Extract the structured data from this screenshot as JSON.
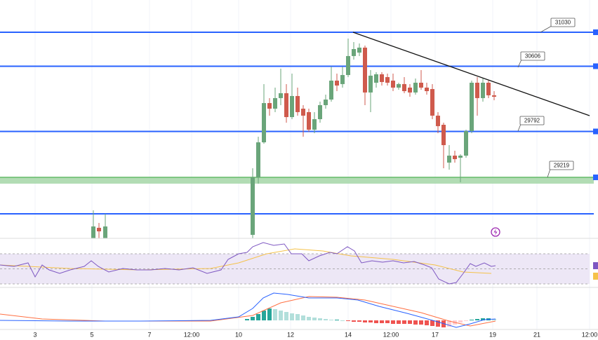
{
  "chart_data": {
    "type": "candlestick",
    "xlim": [
      0,
      106.5
    ],
    "xticks": [
      {
        "value": 6.25,
        "label": "3"
      },
      {
        "value": 16.375,
        "label": "5"
      },
      {
        "value": 26.625,
        "label": "7"
      },
      {
        "value": 34.125,
        "label": "12:00"
      },
      {
        "value": 42.5,
        "label": "10"
      },
      {
        "value": 51.75,
        "label": "12"
      },
      {
        "value": 62,
        "label": "14"
      },
      {
        "value": 69.625,
        "label": "12:00"
      },
      {
        "value": 77.5,
        "label": "17"
      },
      {
        "value": 87.75,
        "label": "19"
      },
      {
        "value": 95.625,
        "label": "21"
      },
      {
        "value": 105,
        "label": "12:00"
      }
    ],
    "ylim": [
      28457.5,
      31432.5
    ],
    "up_color": "#6aa57a",
    "down_color": "#cf5a4c",
    "level_color": "#2962ff",
    "levels": [
      31030,
      30606,
      29792
    ],
    "support_zone": 29219,
    "support_zone_color": "#a5d6a7",
    "lower_level": 28764,
    "trendline": {
      "x": [
        62.875,
        105
      ],
      "values": [
        31030,
        29989
      ],
      "color": "#111111"
    },
    "candles": {
      "x": [
        16.625,
        17.625,
        18.75,
        45,
        46,
        47,
        48,
        49,
        50,
        51,
        52,
        53,
        54,
        55,
        56,
        57,
        58,
        59,
        60,
        61,
        62,
        63,
        64,
        65,
        66,
        67,
        68,
        69,
        70,
        71,
        72,
        73,
        74,
        75,
        76,
        77,
        78,
        79,
        80,
        81,
        82,
        83,
        84,
        85,
        86,
        87,
        88
      ],
      "open": [
        28458,
        28589,
        28458,
        28501,
        29219,
        29656,
        30146,
        30076,
        30208,
        30269,
        29971,
        30234,
        30076,
        30033,
        29814,
        29945,
        30120,
        30190,
        30426,
        30383,
        30496,
        30733,
        30776,
        30838,
        30278,
        30400,
        30505,
        30470,
        30426,
        30339,
        30383,
        30339,
        30278,
        30400,
        30339,
        30321,
        29989,
        29875,
        29403,
        29490,
        29464,
        29490,
        29796,
        30400,
        30208,
        30400,
        30243
      ],
      "high": [
        28808,
        28650,
        28764,
        29333,
        29726,
        30383,
        30208,
        30339,
        30576,
        30383,
        30514,
        30339,
        30120,
        30076,
        30033,
        30164,
        30251,
        30601,
        30514,
        30601,
        30951,
        30908,
        30890,
        30864,
        30558,
        30531,
        30531,
        30514,
        30514,
        30400,
        30470,
        30383,
        30453,
        30558,
        30400,
        30383,
        30033,
        29901,
        29621,
        29551,
        29508,
        29814,
        30426,
        30470,
        30453,
        30426,
        30295
      ],
      "low": [
        28458,
        28458,
        28458,
        28458,
        29140,
        29639,
        29989,
        30033,
        30120,
        29901,
        29945,
        29989,
        29726,
        29788,
        29770,
        29901,
        30076,
        30164,
        30295,
        30339,
        30470,
        30689,
        30733,
        30120,
        30033,
        30339,
        30365,
        30365,
        30295,
        30313,
        30269,
        30225,
        30251,
        30313,
        30251,
        29945,
        29770,
        29333,
        29315,
        29403,
        29158,
        29464,
        29770,
        29989,
        30164,
        30208,
        30181
      ],
      "close": [
        28606,
        28545,
        28606,
        29219,
        29656,
        30146,
        30076,
        30208,
        30269,
        29971,
        30234,
        30033,
        29989,
        29814,
        29945,
        30120,
        30190,
        30426,
        30365,
        30496,
        30733,
        30820,
        30838,
        30278,
        30488,
        30505,
        30409,
        30400,
        30339,
        30383,
        30295,
        30278,
        30400,
        30339,
        30295,
        29989,
        29858,
        29621,
        29490,
        29446,
        29490,
        29796,
        30400,
        30208,
        30400,
        30243,
        30225
      ]
    },
    "rsi": {
      "ylim": [
        25.35,
        90.47
      ],
      "levels": [
        70,
        50,
        30
      ],
      "band_color": "#ede7f6",
      "x": [
        0,
        2.5,
        5,
        6.25,
        7.5,
        8.75,
        10.625,
        12.5,
        15,
        16.25,
        17.5,
        19.375,
        21.875,
        24.375,
        26.875,
        29.375,
        31.875,
        34.375,
        36.875,
        39.375,
        40.625,
        42.5,
        44,
        45,
        46.875,
        48.75,
        50.625,
        51.875,
        53.75,
        55,
        56.875,
        58.75,
        60,
        61.875,
        63.125,
        64.375,
        66.25,
        68.125,
        70,
        71.875,
        73.75,
        75.625,
        76.875,
        78.125,
        80,
        81.25,
        82.5,
        83.75,
        84.75,
        86.25,
        87.5,
        88.25
      ],
      "values": [
        55.1,
        53.3,
        57.9,
        39.3,
        55.1,
        48.6,
        44.0,
        48.6,
        53.3,
        60.7,
        53.3,
        45.8,
        50.5,
        48.6,
        48.6,
        50.5,
        48.6,
        51.4,
        44.0,
        48.6,
        62.6,
        70.0,
        71.9,
        79.3,
        84.9,
        81.2,
        83.0,
        70.0,
        70.0,
        60.7,
        67.2,
        71.9,
        70.0,
        79.3,
        73.7,
        57.9,
        60.7,
        58.8,
        60.7,
        57.9,
        59.8,
        55.1,
        51.4,
        36.5,
        30.0,
        31.9,
        44.0,
        57.0,
        53.3,
        57.9,
        53.3,
        54.2
      ],
      "color": "#7e57c2",
      "ma_x": [
        0,
        12.5,
        25,
        37.5,
        42.5,
        47.5,
        52.5,
        57.5,
        62.5,
        70,
        77.5,
        82.5,
        87.5
      ],
      "ma_values": [
        55.1,
        50.5,
        48.6,
        50.5,
        57.9,
        70.0,
        76.5,
        73.7,
        67.2,
        62.6,
        55.1,
        45.8,
        44.0
      ],
      "ma_color": "#f5c24a"
    },
    "macd": {
      "ylim": [
        -13,
        47
      ],
      "x": [
        0,
        12.5,
        25,
        37.5,
        42.5,
        45,
        46.875,
        48.75,
        51.25,
        55,
        60,
        63.75,
        67.5,
        72.5,
        77.5,
        81.25,
        83.75,
        86.25,
        88.25
      ],
      "values": [
        0,
        -1,
        -1,
        0,
        5,
        17,
        32,
        39,
        37,
        32,
        32,
        29,
        20,
        10,
        -1,
        -10,
        -5,
        1,
        2
      ],
      "color": "#2962ff",
      "signal_x": [
        0,
        7.5,
        18.75,
        37.5,
        45,
        50,
        55,
        60,
        65,
        70,
        75,
        80,
        83.75,
        88.25
      ],
      "signal_values": [
        9,
        2,
        -1,
        -1,
        7,
        25,
        34,
        33,
        29,
        20,
        11,
        -1,
        -8,
        -1
      ],
      "signal_color": "#ff7043",
      "hist_x": [
        44,
        45,
        46,
        47,
        48,
        49,
        50,
        51,
        52,
        53,
        54,
        55,
        56,
        57,
        58,
        59,
        60,
        61,
        62,
        63,
        64,
        65,
        66,
        67,
        68,
        69,
        70,
        71,
        72,
        73,
        74,
        75,
        76,
        77,
        78,
        79,
        80,
        81,
        82,
        83,
        84,
        85,
        86,
        87,
        88
      ],
      "hist": [
        2,
        5,
        9,
        14,
        17,
        16,
        14,
        12,
        10,
        9,
        7,
        5,
        4,
        3,
        2,
        1,
        1,
        0,
        -1,
        -2,
        -2,
        -3,
        -3,
        -4,
        -4,
        -4,
        -5,
        -5,
        -5,
        -5,
        -6,
        -6,
        -7,
        -8,
        -9,
        -10,
        -9,
        -6,
        -3,
        -1,
        1,
        2,
        3,
        3,
        2
      ],
      "hist_colors": [
        "#26a69a",
        "#b2dfdb",
        "#ef5350",
        "#ffcdd2"
      ]
    }
  }
}
